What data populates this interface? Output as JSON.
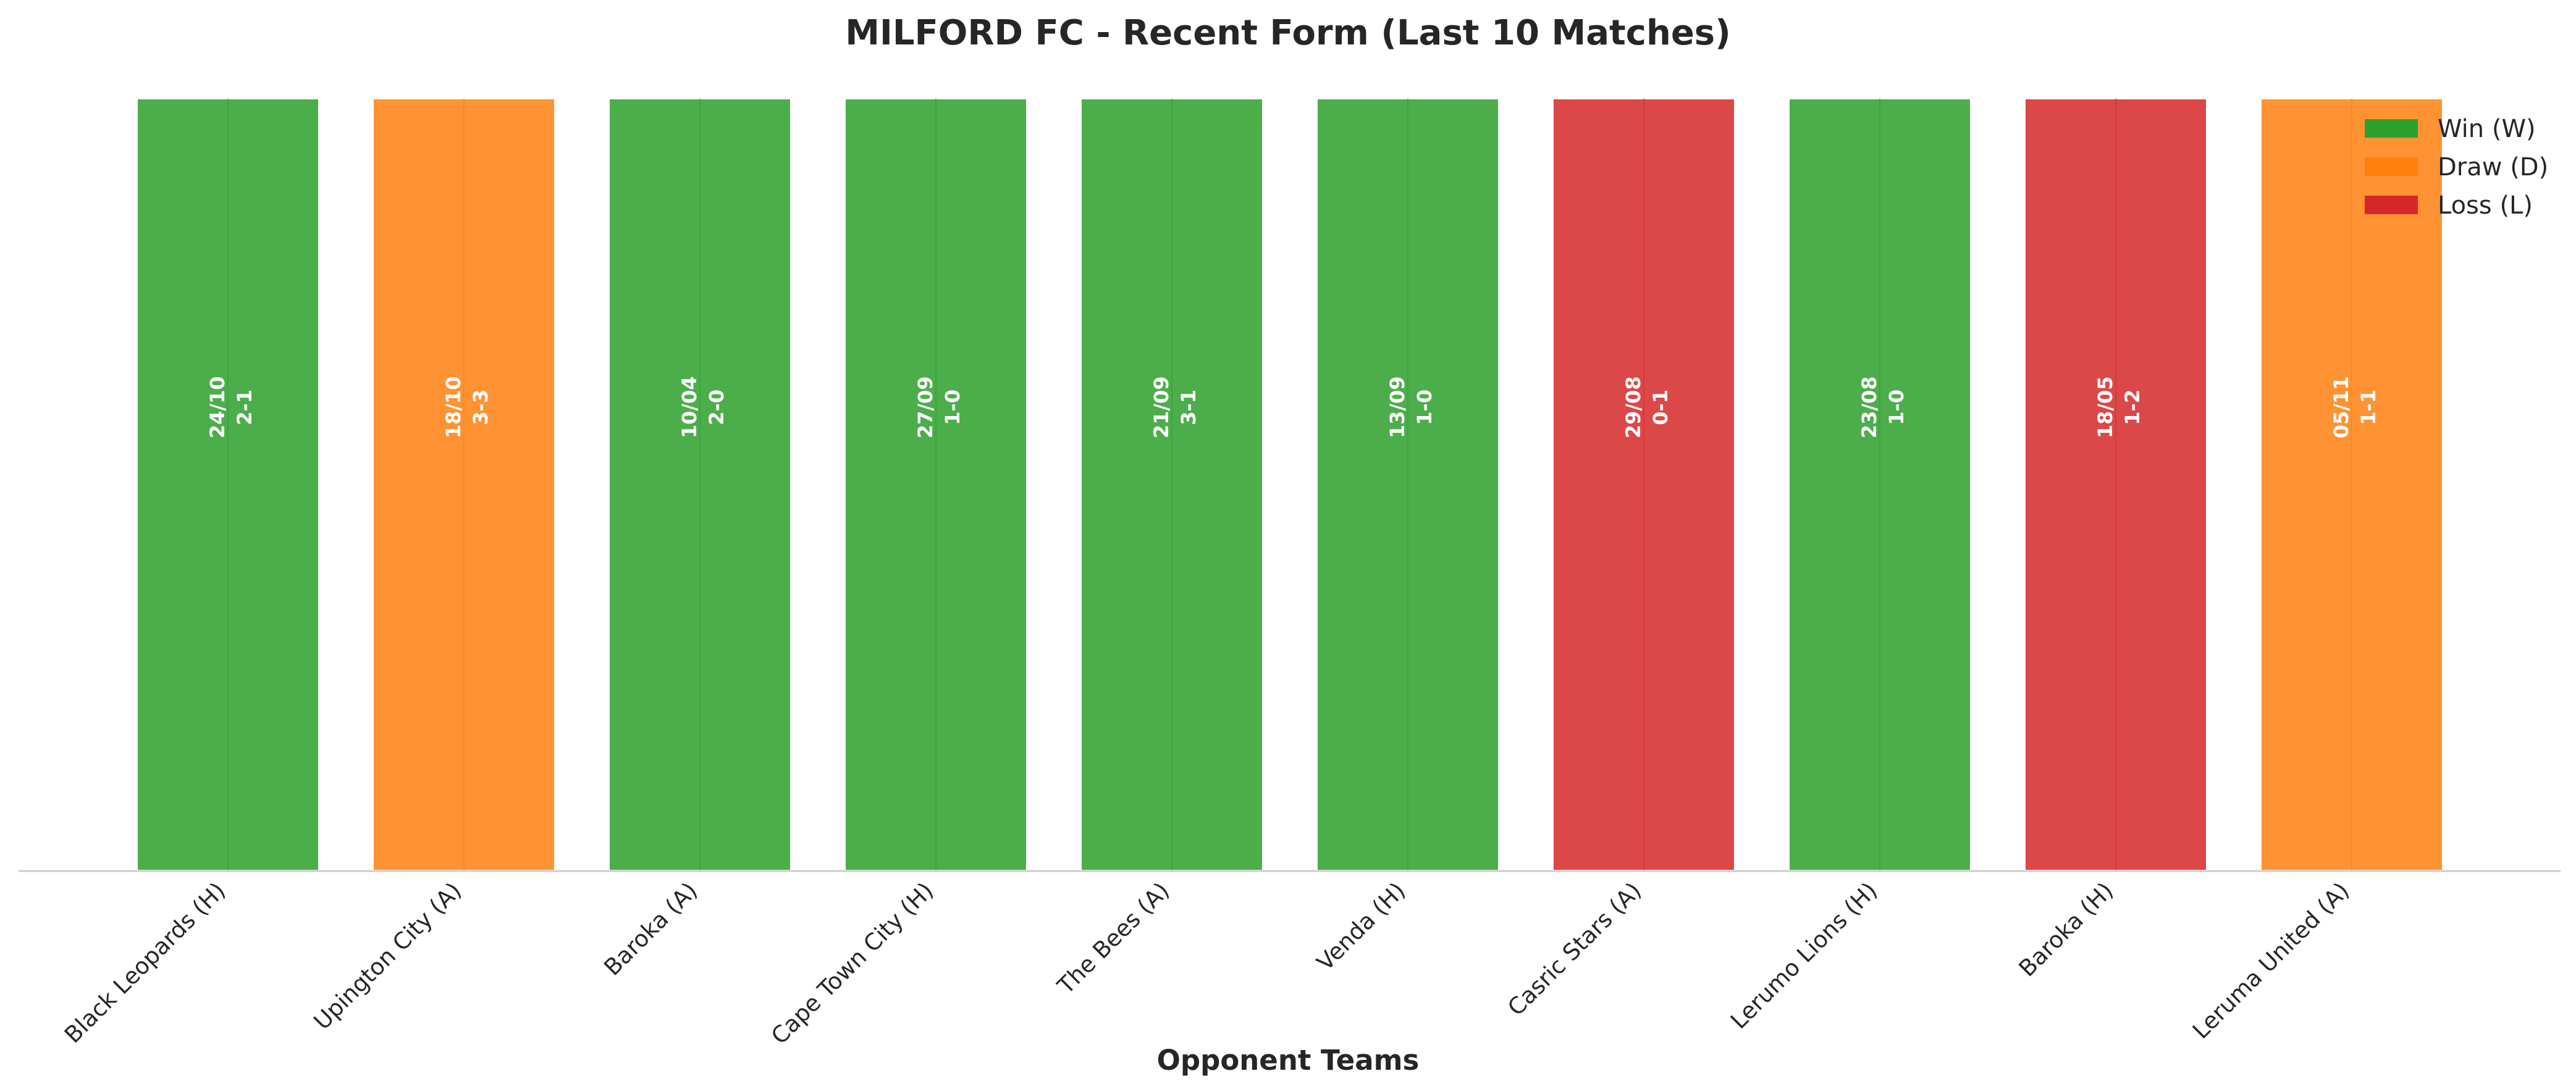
{
  "chart_data": {
    "type": "bar",
    "title": "MILFORD FC - Recent Form (Last 10 Matches)",
    "xlabel": "Opponent Teams",
    "ylabel": "",
    "grid": false,
    "legend_position": "top-right",
    "colors": {
      "W": "#2ca02c",
      "D": "#ff7f0e",
      "L": "#d62728"
    },
    "legend": [
      {
        "key": "W",
        "label": "Win (W)"
      },
      {
        "key": "D",
        "label": "Draw (D)"
      },
      {
        "key": "L",
        "label": "Loss (L)"
      }
    ],
    "categories": [
      "Black Leopards (H)",
      "Upington City (A)",
      "Baroka (A)",
      "Cape Town City (H)",
      "The Bees (A)",
      "Venda (H)",
      "Casric Stars (A)",
      "Lerumo Lions (H)",
      "Baroka (H)",
      "Leruma United (A)"
    ],
    "values": [
      1,
      1,
      1,
      1,
      1,
      1,
      1,
      1,
      1,
      1
    ],
    "ylim": [
      0,
      1
    ],
    "matches": [
      {
        "result": "W",
        "date": "24/10",
        "score": "2-1"
      },
      {
        "result": "D",
        "date": "18/10",
        "score": "3-3"
      },
      {
        "result": "W",
        "date": "10/04",
        "score": "2-0"
      },
      {
        "result": "W",
        "date": "27/09",
        "score": "1-0"
      },
      {
        "result": "W",
        "date": "21/09",
        "score": "3-1"
      },
      {
        "result": "W",
        "date": "13/09",
        "score": "1-0"
      },
      {
        "result": "L",
        "date": "29/08",
        "score": "0-1"
      },
      {
        "result": "W",
        "date": "23/08",
        "score": "1-0"
      },
      {
        "result": "L",
        "date": "18/05",
        "score": "1-2"
      },
      {
        "result": "D",
        "date": "05/11",
        "score": "1-1"
      }
    ]
  }
}
